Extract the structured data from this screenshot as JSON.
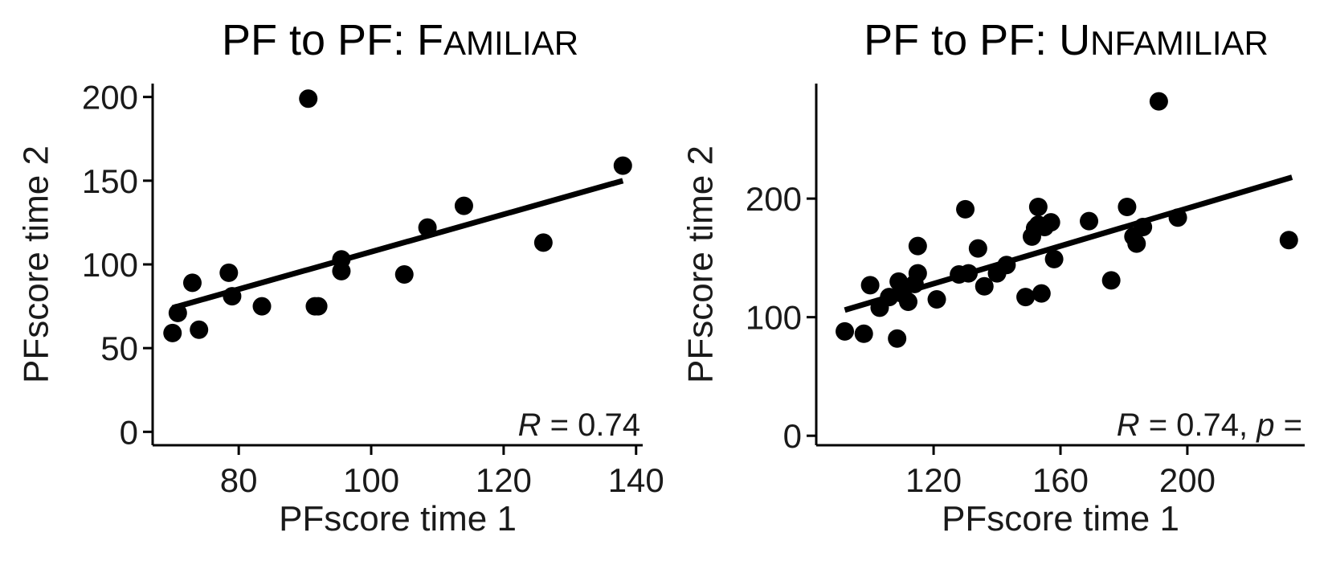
{
  "chart_data": [
    {
      "type": "scatter",
      "title": "PF to PF: Familiar",
      "title_prefix": "PF to PF: ",
      "title_caps_first": "F",
      "title_caps_rest": "amiliar",
      "xlabel": "PFscore time 1",
      "ylabel": "PFscore time 2",
      "xlim": [
        67,
        141
      ],
      "ylim": [
        -8,
        208
      ],
      "xticks": [
        80,
        100,
        120,
        140
      ],
      "yticks": [
        0,
        50,
        100,
        150,
        200
      ],
      "grid": false,
      "annotation": {
        "italic": "R",
        "text": " = 0.74"
      },
      "trendline": {
        "x": [
          70,
          138
        ],
        "y": [
          74,
          150
        ]
      },
      "series": [
        {
          "x": [
            70,
            70.8,
            73,
            74,
            78.5,
            79,
            83.5,
            90.5,
            91.5,
            92,
            95.5,
            95.5,
            105,
            108.5,
            114,
            126,
            138
          ],
          "y": [
            59,
            71,
            89,
            61,
            95,
            81,
            75,
            199,
            75,
            75,
            103,
            96,
            94,
            122,
            135,
            113,
            159
          ]
        }
      ]
    },
    {
      "type": "scatter",
      "title": "PF to PF: Unfamiliar",
      "title_prefix": "PF to PF: ",
      "title_caps_first": "U",
      "title_caps_rest": "nfamiliar",
      "xlabel": "PFscore time 1",
      "ylabel": "PFscore time 2",
      "xlim": [
        83,
        237
      ],
      "ylim": [
        -8,
        297
      ],
      "xticks": [
        120,
        160,
        200
      ],
      "yticks": [
        0,
        100,
        200
      ],
      "grid": false,
      "annotation": {
        "italic": "R",
        "italic2": "p",
        "text": " = 0.74, ",
        "text2": " ="
      },
      "trendline": {
        "x": [
          92,
          233
        ],
        "y": [
          106,
          218
        ]
      },
      "series": [
        {
          "x": [
            92,
            98,
            100,
            103,
            106,
            108.5,
            109,
            110,
            112,
            114,
            115,
            115,
            121,
            128,
            130,
            131,
            134,
            136,
            140,
            143,
            149,
            151,
            152,
            153,
            153,
            154,
            155,
            157,
            158,
            169,
            176,
            181,
            183,
            184,
            186,
            191,
            197,
            232
          ],
          "y": [
            88,
            86,
            127,
            108,
            117,
            82,
            130,
            120,
            113,
            128,
            137,
            160,
            115,
            136,
            191,
            137,
            158,
            126,
            137,
            144,
            117,
            168,
            175,
            178,
            193,
            120,
            176,
            180,
            149,
            181,
            131,
            193,
            168,
            162,
            176,
            282,
            184,
            165
          ]
        }
      ]
    }
  ]
}
